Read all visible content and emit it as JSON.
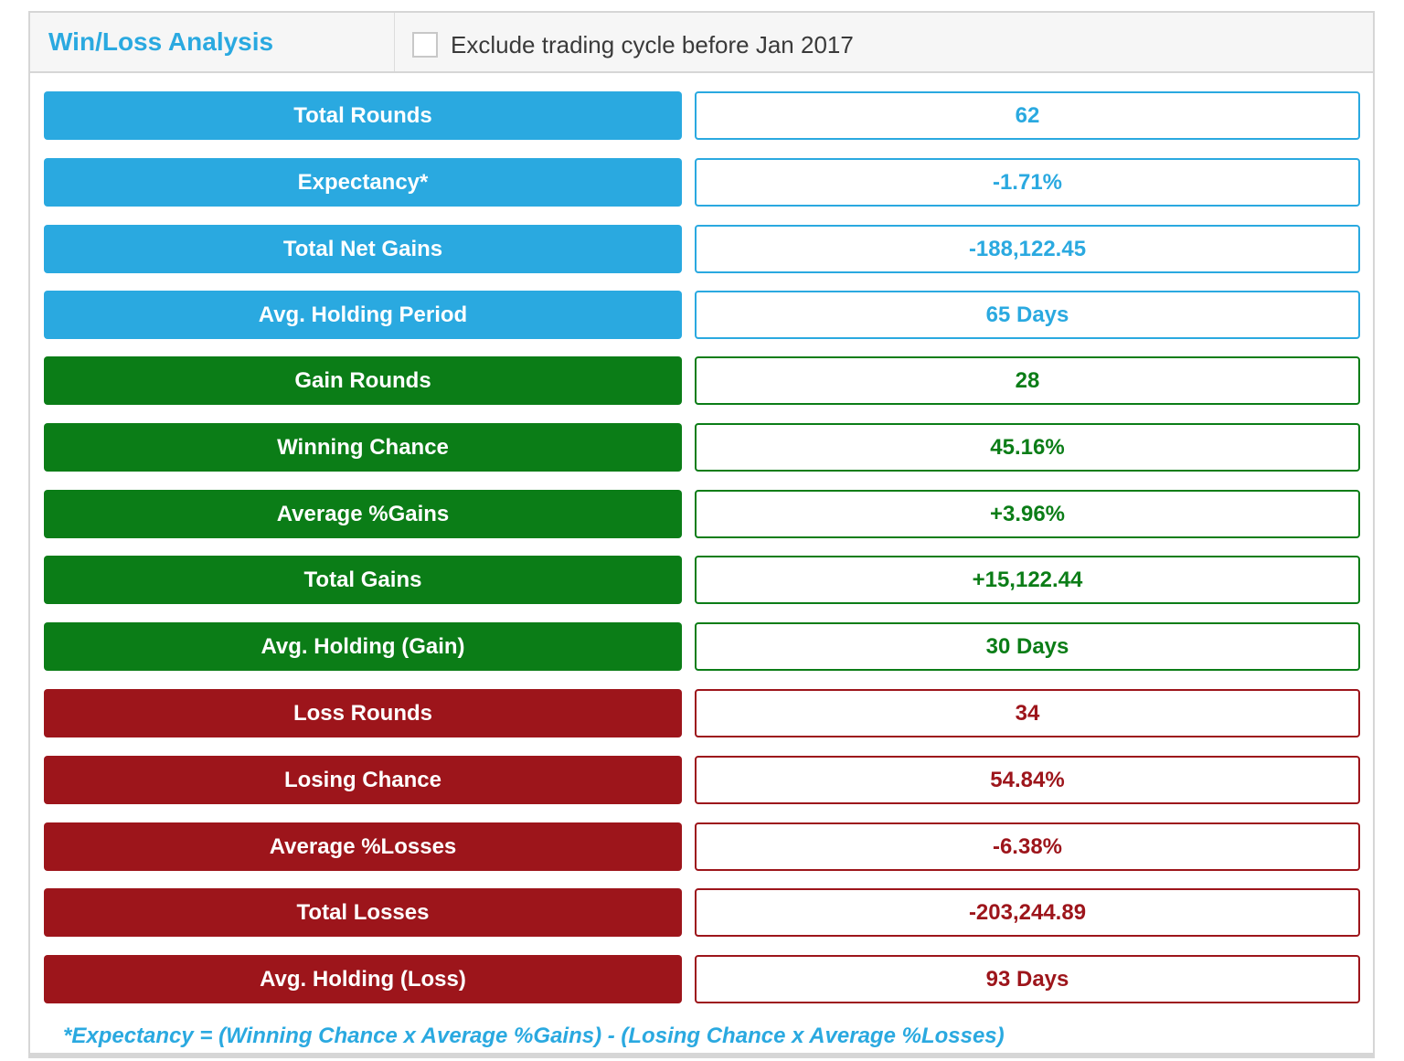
{
  "header": {
    "title": "Win/Loss Analysis",
    "exclude_label": "Exclude trading cycle before Jan 2017",
    "exclude_checked": false
  },
  "colors": {
    "blue": "#2aa9e0",
    "green": "#0b7d17",
    "red": "#9d151b"
  },
  "rows": [
    {
      "label": "Total Rounds",
      "value": "62",
      "color": "blue"
    },
    {
      "label": "Expectancy*",
      "value": "-1.71%",
      "color": "blue"
    },
    {
      "label": "Total Net Gains",
      "value": "-188,122.45",
      "color": "blue"
    },
    {
      "label": "Avg. Holding Period",
      "value": "65 Days",
      "color": "blue"
    },
    {
      "label": "Gain Rounds",
      "value": "28",
      "color": "green"
    },
    {
      "label": "Winning Chance",
      "value": "45.16%",
      "color": "green"
    },
    {
      "label": "Average %Gains",
      "value": "+3.96%",
      "color": "green"
    },
    {
      "label": "Total Gains",
      "value": "+15,122.44",
      "color": "green"
    },
    {
      "label": "Avg. Holding (Gain)",
      "value": "30 Days",
      "color": "green"
    },
    {
      "label": "Loss Rounds",
      "value": "34",
      "color": "red"
    },
    {
      "label": "Losing Chance",
      "value": "54.84%",
      "color": "red"
    },
    {
      "label": "Average %Losses",
      "value": "-6.38%",
      "color": "red"
    },
    {
      "label": "Total Losses",
      "value": "-203,244.89",
      "color": "red"
    },
    {
      "label": "Avg. Holding (Loss)",
      "value": "93 Days",
      "color": "red"
    }
  ],
  "footnote": "*Expectancy = (Winning Chance x Average %Gains) - (Losing Chance x Average %Losses)"
}
